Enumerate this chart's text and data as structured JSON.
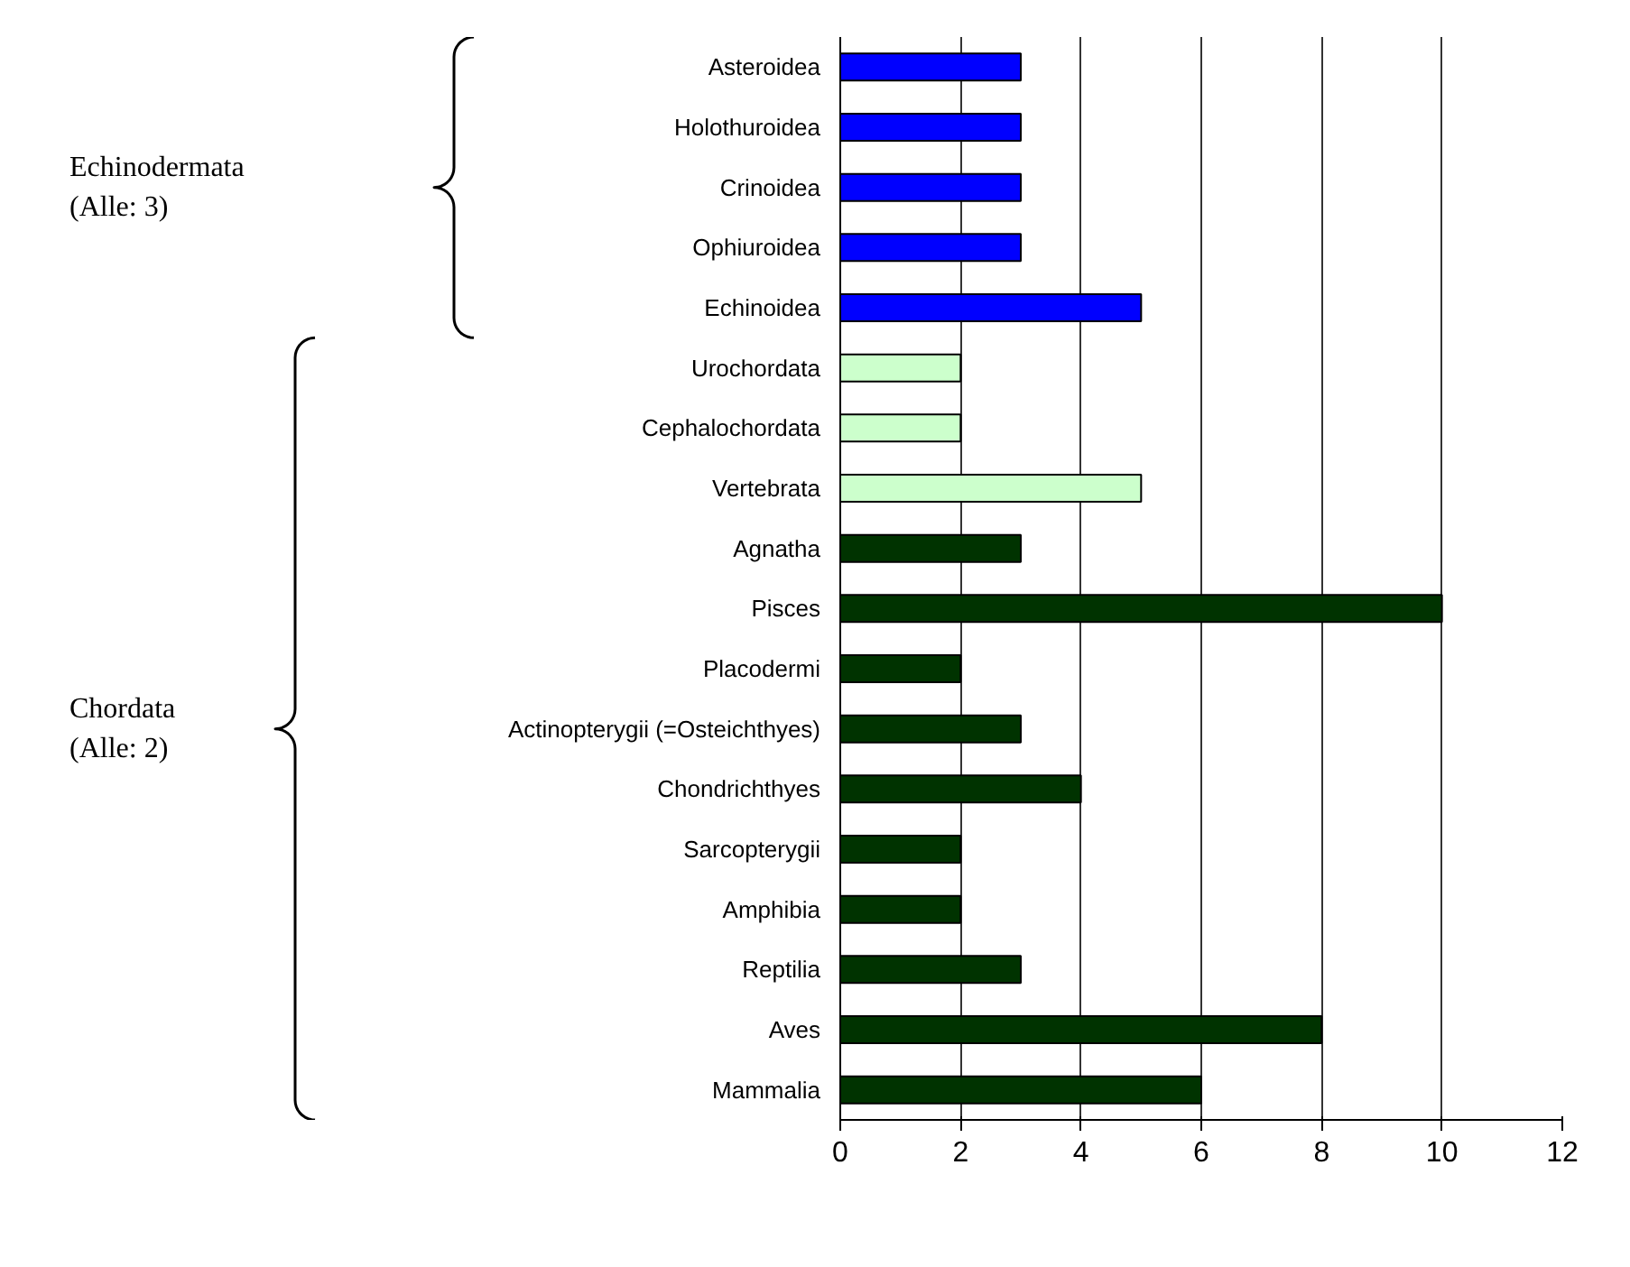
{
  "chart_data": {
    "type": "bar",
    "orientation": "horizontal",
    "categories": [
      "Asteroidea",
      "Holothuroidea",
      "Crinoidea",
      "Ophiuroidea",
      "Echinoidea",
      "Urochordata",
      "Cephalochordata",
      "Vertebrata",
      "Agnatha",
      "Pisces",
      "Placodermi",
      "Actinopterygii (=Osteichthyes)",
      "Chondrichthyes",
      "Sarcopterygii",
      "Amphibia",
      "Reptilia",
      "Aves",
      "Mammalia"
    ],
    "values": [
      3,
      3,
      3,
      3,
      5,
      2,
      2,
      5,
      3,
      10,
      2,
      3,
      4,
      2,
      2,
      3,
      8,
      6
    ],
    "colors": [
      "#0000ff",
      "#0000ff",
      "#0000ff",
      "#0000ff",
      "#0000ff",
      "#ccffcc",
      "#ccffcc",
      "#ccffcc",
      "#003300",
      "#003300",
      "#003300",
      "#003300",
      "#003300",
      "#003300",
      "#003300",
      "#003300",
      "#003300",
      "#003300"
    ],
    "xlim": [
      0,
      12
    ],
    "xticks": [
      0,
      2,
      4,
      6,
      8,
      10,
      12
    ],
    "grid": "x",
    "annotations": [
      "Echinodermata\n(Alle: 3)",
      "Chordata\n(Alle: 2)"
    ]
  }
}
